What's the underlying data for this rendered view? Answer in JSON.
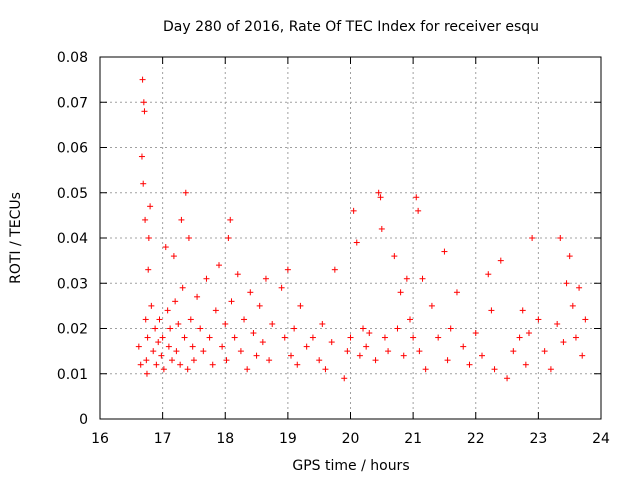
{
  "chart_data": {
    "type": "scatter",
    "title": "Day 280 of 2016, Rate Of TEC Index for receiver esqu",
    "xlabel": "GPS time / hours",
    "ylabel": "ROTI / TECUs",
    "xlim": [
      16,
      24
    ],
    "ylim": [
      0,
      0.08
    ],
    "xticks": [
      "16",
      "17",
      "18",
      "19",
      "20",
      "21",
      "22",
      "23",
      "24"
    ],
    "yticks": [
      "0",
      "0.01",
      "0.02",
      "0.03",
      "0.04",
      "0.05",
      "0.06",
      "0.07",
      "0.08"
    ],
    "grid": true,
    "marker": "plus",
    "colors": {
      "points": "#ff0000",
      "grid": "#a0a0a0",
      "axes": "#000000"
    },
    "series": [
      {
        "name": "ROTI",
        "x": [
          16.62,
          16.65,
          16.67,
          16.68,
          16.69,
          16.7,
          16.71,
          16.72,
          16.73,
          16.74,
          16.75,
          16.76,
          16.77,
          16.78,
          16.8,
          16.82,
          16.85,
          16.88,
          16.9,
          16.93,
          16.95,
          16.98,
          17.0,
          17.02,
          17.05,
          17.08,
          17.1,
          17.12,
          17.15,
          17.18,
          17.2,
          17.22,
          17.25,
          17.28,
          17.3,
          17.32,
          17.35,
          17.37,
          17.4,
          17.42,
          17.45,
          17.48,
          17.5,
          17.55,
          17.6,
          17.65,
          17.7,
          17.75,
          17.8,
          17.85,
          17.9,
          17.95,
          18.0,
          18.02,
          18.05,
          18.08,
          18.1,
          18.15,
          18.2,
          18.25,
          18.3,
          18.35,
          18.4,
          18.45,
          18.5,
          18.55,
          18.6,
          18.65,
          18.7,
          18.75,
          18.9,
          18.95,
          19.0,
          19.05,
          19.1,
          19.15,
          19.2,
          19.3,
          19.4,
          19.5,
          19.55,
          19.6,
          19.7,
          19.75,
          19.9,
          19.95,
          20.0,
          20.05,
          20.1,
          20.15,
          20.2,
          20.25,
          20.3,
          20.4,
          20.45,
          20.48,
          20.5,
          20.55,
          20.6,
          20.7,
          20.75,
          20.8,
          20.85,
          20.9,
          20.95,
          21.0,
          21.05,
          21.08,
          21.1,
          21.15,
          21.2,
          21.3,
          21.4,
          21.5,
          21.55,
          21.6,
          21.7,
          21.8,
          21.9,
          22.0,
          22.1,
          22.2,
          22.25,
          22.3,
          22.4,
          22.5,
          22.6,
          22.7,
          22.75,
          22.8,
          22.85,
          22.9,
          23.0,
          23.1,
          23.2,
          23.3,
          23.35,
          23.4,
          23.45,
          23.5,
          23.55,
          23.6,
          23.65,
          23.7,
          23.75
        ],
        "y": [
          0.016,
          0.012,
          0.058,
          0.075,
          0.052,
          0.07,
          0.068,
          0.044,
          0.022,
          0.013,
          0.01,
          0.018,
          0.033,
          0.04,
          0.047,
          0.025,
          0.015,
          0.02,
          0.012,
          0.017,
          0.022,
          0.014,
          0.018,
          0.011,
          0.038,
          0.024,
          0.016,
          0.02,
          0.013,
          0.036,
          0.026,
          0.015,
          0.021,
          0.012,
          0.044,
          0.029,
          0.018,
          0.05,
          0.011,
          0.04,
          0.022,
          0.016,
          0.013,
          0.027,
          0.02,
          0.015,
          0.031,
          0.018,
          0.012,
          0.024,
          0.034,
          0.016,
          0.021,
          0.013,
          0.04,
          0.044,
          0.026,
          0.018,
          0.032,
          0.015,
          0.022,
          0.011,
          0.028,
          0.019,
          0.014,
          0.025,
          0.017,
          0.031,
          0.013,
          0.021,
          0.029,
          0.018,
          0.033,
          0.014,
          0.02,
          0.012,
          0.025,
          0.016,
          0.018,
          0.013,
          0.021,
          0.011,
          0.017,
          0.033,
          0.009,
          0.015,
          0.018,
          0.046,
          0.039,
          0.014,
          0.02,
          0.016,
          0.019,
          0.013,
          0.05,
          0.049,
          0.042,
          0.018,
          0.015,
          0.036,
          0.02,
          0.028,
          0.014,
          0.031,
          0.022,
          0.018,
          0.049,
          0.046,
          0.015,
          0.031,
          0.011,
          0.025,
          0.018,
          0.037,
          0.013,
          0.02,
          0.028,
          0.016,
          0.012,
          0.019,
          0.014,
          0.032,
          0.024,
          0.011,
          0.035,
          0.009,
          0.015,
          0.018,
          0.024,
          0.012,
          0.019,
          0.04,
          0.022,
          0.015,
          0.011,
          0.021,
          0.04,
          0.017,
          0.03,
          0.036,
          0.025,
          0.018,
          0.029,
          0.014,
          0.022
        ]
      }
    ]
  }
}
